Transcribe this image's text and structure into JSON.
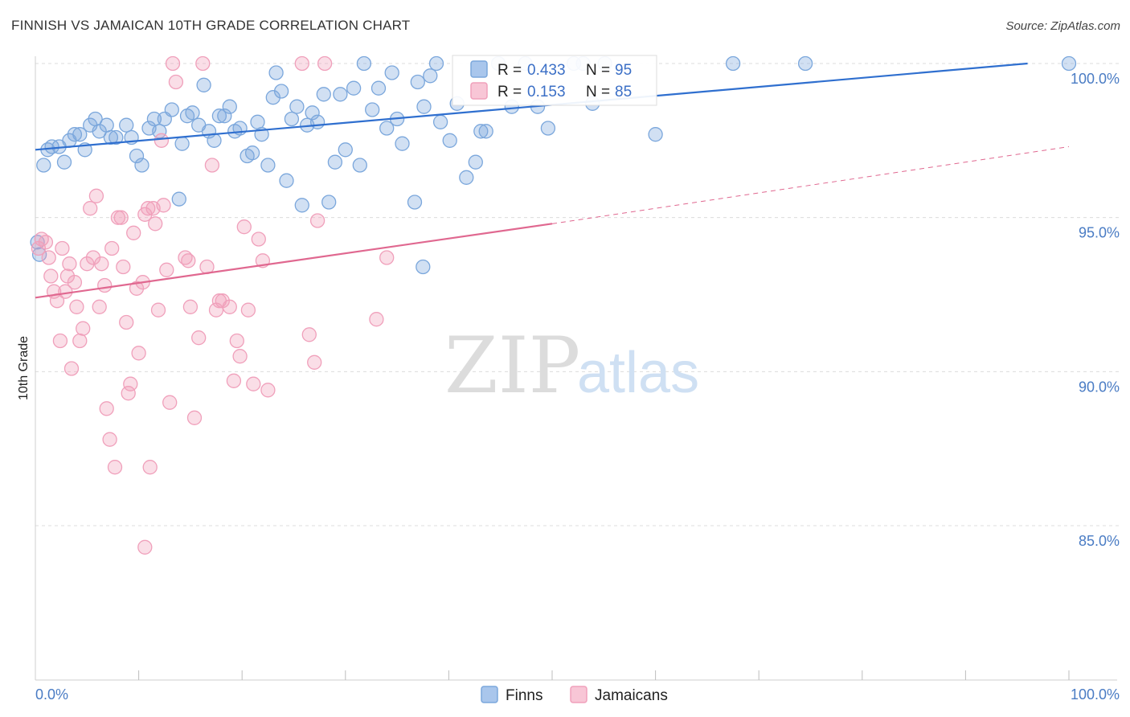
{
  "title": "FINNISH VS JAMAICAN 10TH GRADE CORRELATION CHART",
  "source": "Source: ZipAtlas.com",
  "watermark": {
    "zip": "ZIP",
    "atlas": "atlas"
  },
  "colors": {
    "finns": "#7ba7dc",
    "finns_line": "#2f6fcf",
    "jamaicans": "#f0a0bb",
    "jamaicans_line": "#e06890"
  },
  "legend_top": [
    {
      "r_label": "R =",
      "r_value": "0.433",
      "n_label": "N =",
      "n_value": "95"
    },
    {
      "r_label": "R =",
      "r_value": "0.153",
      "n_label": "N =",
      "n_value": "85"
    }
  ],
  "legend_bottom": [
    "Finns",
    "Jamaicans"
  ],
  "chart_data": {
    "type": "scatter",
    "title": "FINNISH VS JAMAICAN 10TH GRADE CORRELATION CHART",
    "xlabel": "",
    "ylabel": "10th Grade",
    "xlim": [
      0,
      100
    ],
    "ylim": [
      80.5,
      100.8
    ],
    "x_tick_labels": [
      "0.0%",
      "100.0%"
    ],
    "y_ticks": [
      85,
      90,
      95,
      100
    ],
    "y_tick_labels": [
      "85.0%",
      "90.0%",
      "95.0%",
      "100.0%"
    ],
    "grid": true,
    "legend": "top-center",
    "series": [
      {
        "name": "Finns",
        "R": 0.433,
        "N": 95,
        "trend": [
          [
            0,
            97.2
          ],
          [
            96,
            100.0
          ]
        ],
        "points": [
          [
            0.8,
            96.7
          ],
          [
            1.2,
            97.2
          ],
          [
            1.6,
            97.3
          ],
          [
            2.3,
            97.3
          ],
          [
            2.8,
            96.8
          ],
          [
            3.3,
            97.5
          ],
          [
            3.8,
            97.7
          ],
          [
            4.3,
            97.7
          ],
          [
            4.8,
            97.2
          ],
          [
            5.3,
            98.0
          ],
          [
            5.8,
            98.2
          ],
          [
            6.2,
            97.8
          ],
          [
            6.9,
            98.0
          ],
          [
            7.3,
            97.6
          ],
          [
            7.8,
            97.6
          ],
          [
            8.8,
            98.0
          ],
          [
            9.3,
            97.6
          ],
          [
            9.8,
            97.0
          ],
          [
            10.3,
            96.7
          ],
          [
            11.0,
            97.9
          ],
          [
            11.5,
            98.2
          ],
          [
            12.0,
            97.8
          ],
          [
            12.5,
            98.2
          ],
          [
            13.2,
            98.5
          ],
          [
            13.9,
            95.6
          ],
          [
            14.2,
            97.4
          ],
          [
            14.7,
            98.3
          ],
          [
            15.2,
            98.4
          ],
          [
            15.8,
            98.0
          ],
          [
            16.3,
            99.3
          ],
          [
            16.8,
            97.8
          ],
          [
            17.3,
            97.5
          ],
          [
            17.8,
            98.3
          ],
          [
            18.3,
            98.3
          ],
          [
            18.8,
            98.6
          ],
          [
            19.3,
            97.8
          ],
          [
            19.8,
            97.9
          ],
          [
            20.5,
            97.0
          ],
          [
            21.0,
            97.1
          ],
          [
            21.5,
            98.1
          ],
          [
            21.9,
            97.7
          ],
          [
            22.5,
            96.7
          ],
          [
            23.0,
            98.9
          ],
          [
            23.3,
            99.7
          ],
          [
            23.8,
            99.1
          ],
          [
            24.3,
            96.2
          ],
          [
            24.8,
            98.2
          ],
          [
            25.3,
            98.6
          ],
          [
            25.8,
            95.4
          ],
          [
            26.3,
            98.0
          ],
          [
            26.8,
            98.4
          ],
          [
            27.3,
            98.1
          ],
          [
            27.9,
            99.0
          ],
          [
            28.4,
            95.5
          ],
          [
            29.0,
            96.8
          ],
          [
            29.5,
            99.0
          ],
          [
            30.0,
            97.2
          ],
          [
            30.8,
            99.2
          ],
          [
            31.4,
            96.7
          ],
          [
            31.8,
            100.0
          ],
          [
            32.6,
            98.5
          ],
          [
            33.2,
            99.2
          ],
          [
            34.0,
            97.9
          ],
          [
            34.5,
            99.7
          ],
          [
            35.0,
            98.2
          ],
          [
            35.5,
            97.4
          ],
          [
            36.7,
            95.5
          ],
          [
            37.0,
            99.4
          ],
          [
            37.6,
            98.6
          ],
          [
            38.2,
            99.6
          ],
          [
            38.8,
            100.0
          ],
          [
            39.2,
            98.1
          ],
          [
            40.1,
            97.5
          ],
          [
            40.8,
            98.7
          ],
          [
            41.7,
            96.3
          ],
          [
            42.6,
            96.8
          ],
          [
            43.1,
            97.8
          ],
          [
            43.6,
            97.8
          ],
          [
            44.8,
            100.0
          ],
          [
            46.1,
            98.6
          ],
          [
            47.4,
            100.0
          ],
          [
            48.6,
            98.6
          ],
          [
            49.6,
            97.9
          ],
          [
            52.1,
            100.0
          ],
          [
            53.0,
            100.0
          ],
          [
            53.9,
            98.7
          ],
          [
            55.1,
            100.0
          ],
          [
            60.0,
            97.7
          ],
          [
            67.5,
            100.0
          ],
          [
            74.5,
            100.0
          ],
          [
            100.0,
            100.0
          ],
          [
            0.2,
            94.2
          ],
          [
            0.4,
            93.8
          ],
          [
            37.5,
            93.4
          ]
        ]
      },
      {
        "name": "Jamaicans",
        "R": 0.153,
        "N": 85,
        "trend": [
          [
            0,
            92.4
          ],
          [
            50,
            94.8
          ]
        ],
        "trend_dashed": [
          [
            50,
            94.8
          ],
          [
            100,
            97.3
          ]
        ],
        "points": [
          [
            0.3,
            94.0
          ],
          [
            0.6,
            94.3
          ],
          [
            1.0,
            94.2
          ],
          [
            1.3,
            93.7
          ],
          [
            1.5,
            93.1
          ],
          [
            1.8,
            92.6
          ],
          [
            2.1,
            92.3
          ],
          [
            2.4,
            91.0
          ],
          [
            2.6,
            94.0
          ],
          [
            2.9,
            92.6
          ],
          [
            3.1,
            93.1
          ],
          [
            3.3,
            93.5
          ],
          [
            3.5,
            90.1
          ],
          [
            3.8,
            92.9
          ],
          [
            4.0,
            92.1
          ],
          [
            4.3,
            91.0
          ],
          [
            4.6,
            91.4
          ],
          [
            5.0,
            93.5
          ],
          [
            5.3,
            95.3
          ],
          [
            5.6,
            93.7
          ],
          [
            5.9,
            95.7
          ],
          [
            6.2,
            92.1
          ],
          [
            6.4,
            93.5
          ],
          [
            6.7,
            92.8
          ],
          [
            6.9,
            88.8
          ],
          [
            7.2,
            87.8
          ],
          [
            7.4,
            94.0
          ],
          [
            7.7,
            86.9
          ],
          [
            8.0,
            95.0
          ],
          [
            8.3,
            95.0
          ],
          [
            8.5,
            93.4
          ],
          [
            8.8,
            91.6
          ],
          [
            9.0,
            89.3
          ],
          [
            9.2,
            89.6
          ],
          [
            9.5,
            94.5
          ],
          [
            9.8,
            92.7
          ],
          [
            10.0,
            90.6
          ],
          [
            10.4,
            92.9
          ],
          [
            10.6,
            95.1
          ],
          [
            10.9,
            95.3
          ],
          [
            11.1,
            86.9
          ],
          [
            11.4,
            95.3
          ],
          [
            11.6,
            94.8
          ],
          [
            11.9,
            92.0
          ],
          [
            12.2,
            97.5
          ],
          [
            12.4,
            95.4
          ],
          [
            12.7,
            93.3
          ],
          [
            13.0,
            89.0
          ],
          [
            13.3,
            100.0
          ],
          [
            13.6,
            99.4
          ],
          [
            14.5,
            93.7
          ],
          [
            14.8,
            93.6
          ],
          [
            15.0,
            92.1
          ],
          [
            15.4,
            88.5
          ],
          [
            15.8,
            91.1
          ],
          [
            16.2,
            100.0
          ],
          [
            16.6,
            93.4
          ],
          [
            17.1,
            96.7
          ],
          [
            17.5,
            92.0
          ],
          [
            17.8,
            92.3
          ],
          [
            18.1,
            92.3
          ],
          [
            18.8,
            92.1
          ],
          [
            19.2,
            89.7
          ],
          [
            19.5,
            91.0
          ],
          [
            19.8,
            90.5
          ],
          [
            20.2,
            94.7
          ],
          [
            20.6,
            92.0
          ],
          [
            21.1,
            89.6
          ],
          [
            21.6,
            94.3
          ],
          [
            22.0,
            93.6
          ],
          [
            22.5,
            89.4
          ],
          [
            25.8,
            100.0
          ],
          [
            26.5,
            91.2
          ],
          [
            27.0,
            90.3
          ],
          [
            27.3,
            94.9
          ],
          [
            28.0,
            100.0
          ],
          [
            33.0,
            91.7
          ],
          [
            34.0,
            93.7
          ],
          [
            10.6,
            84.3
          ]
        ]
      }
    ]
  }
}
